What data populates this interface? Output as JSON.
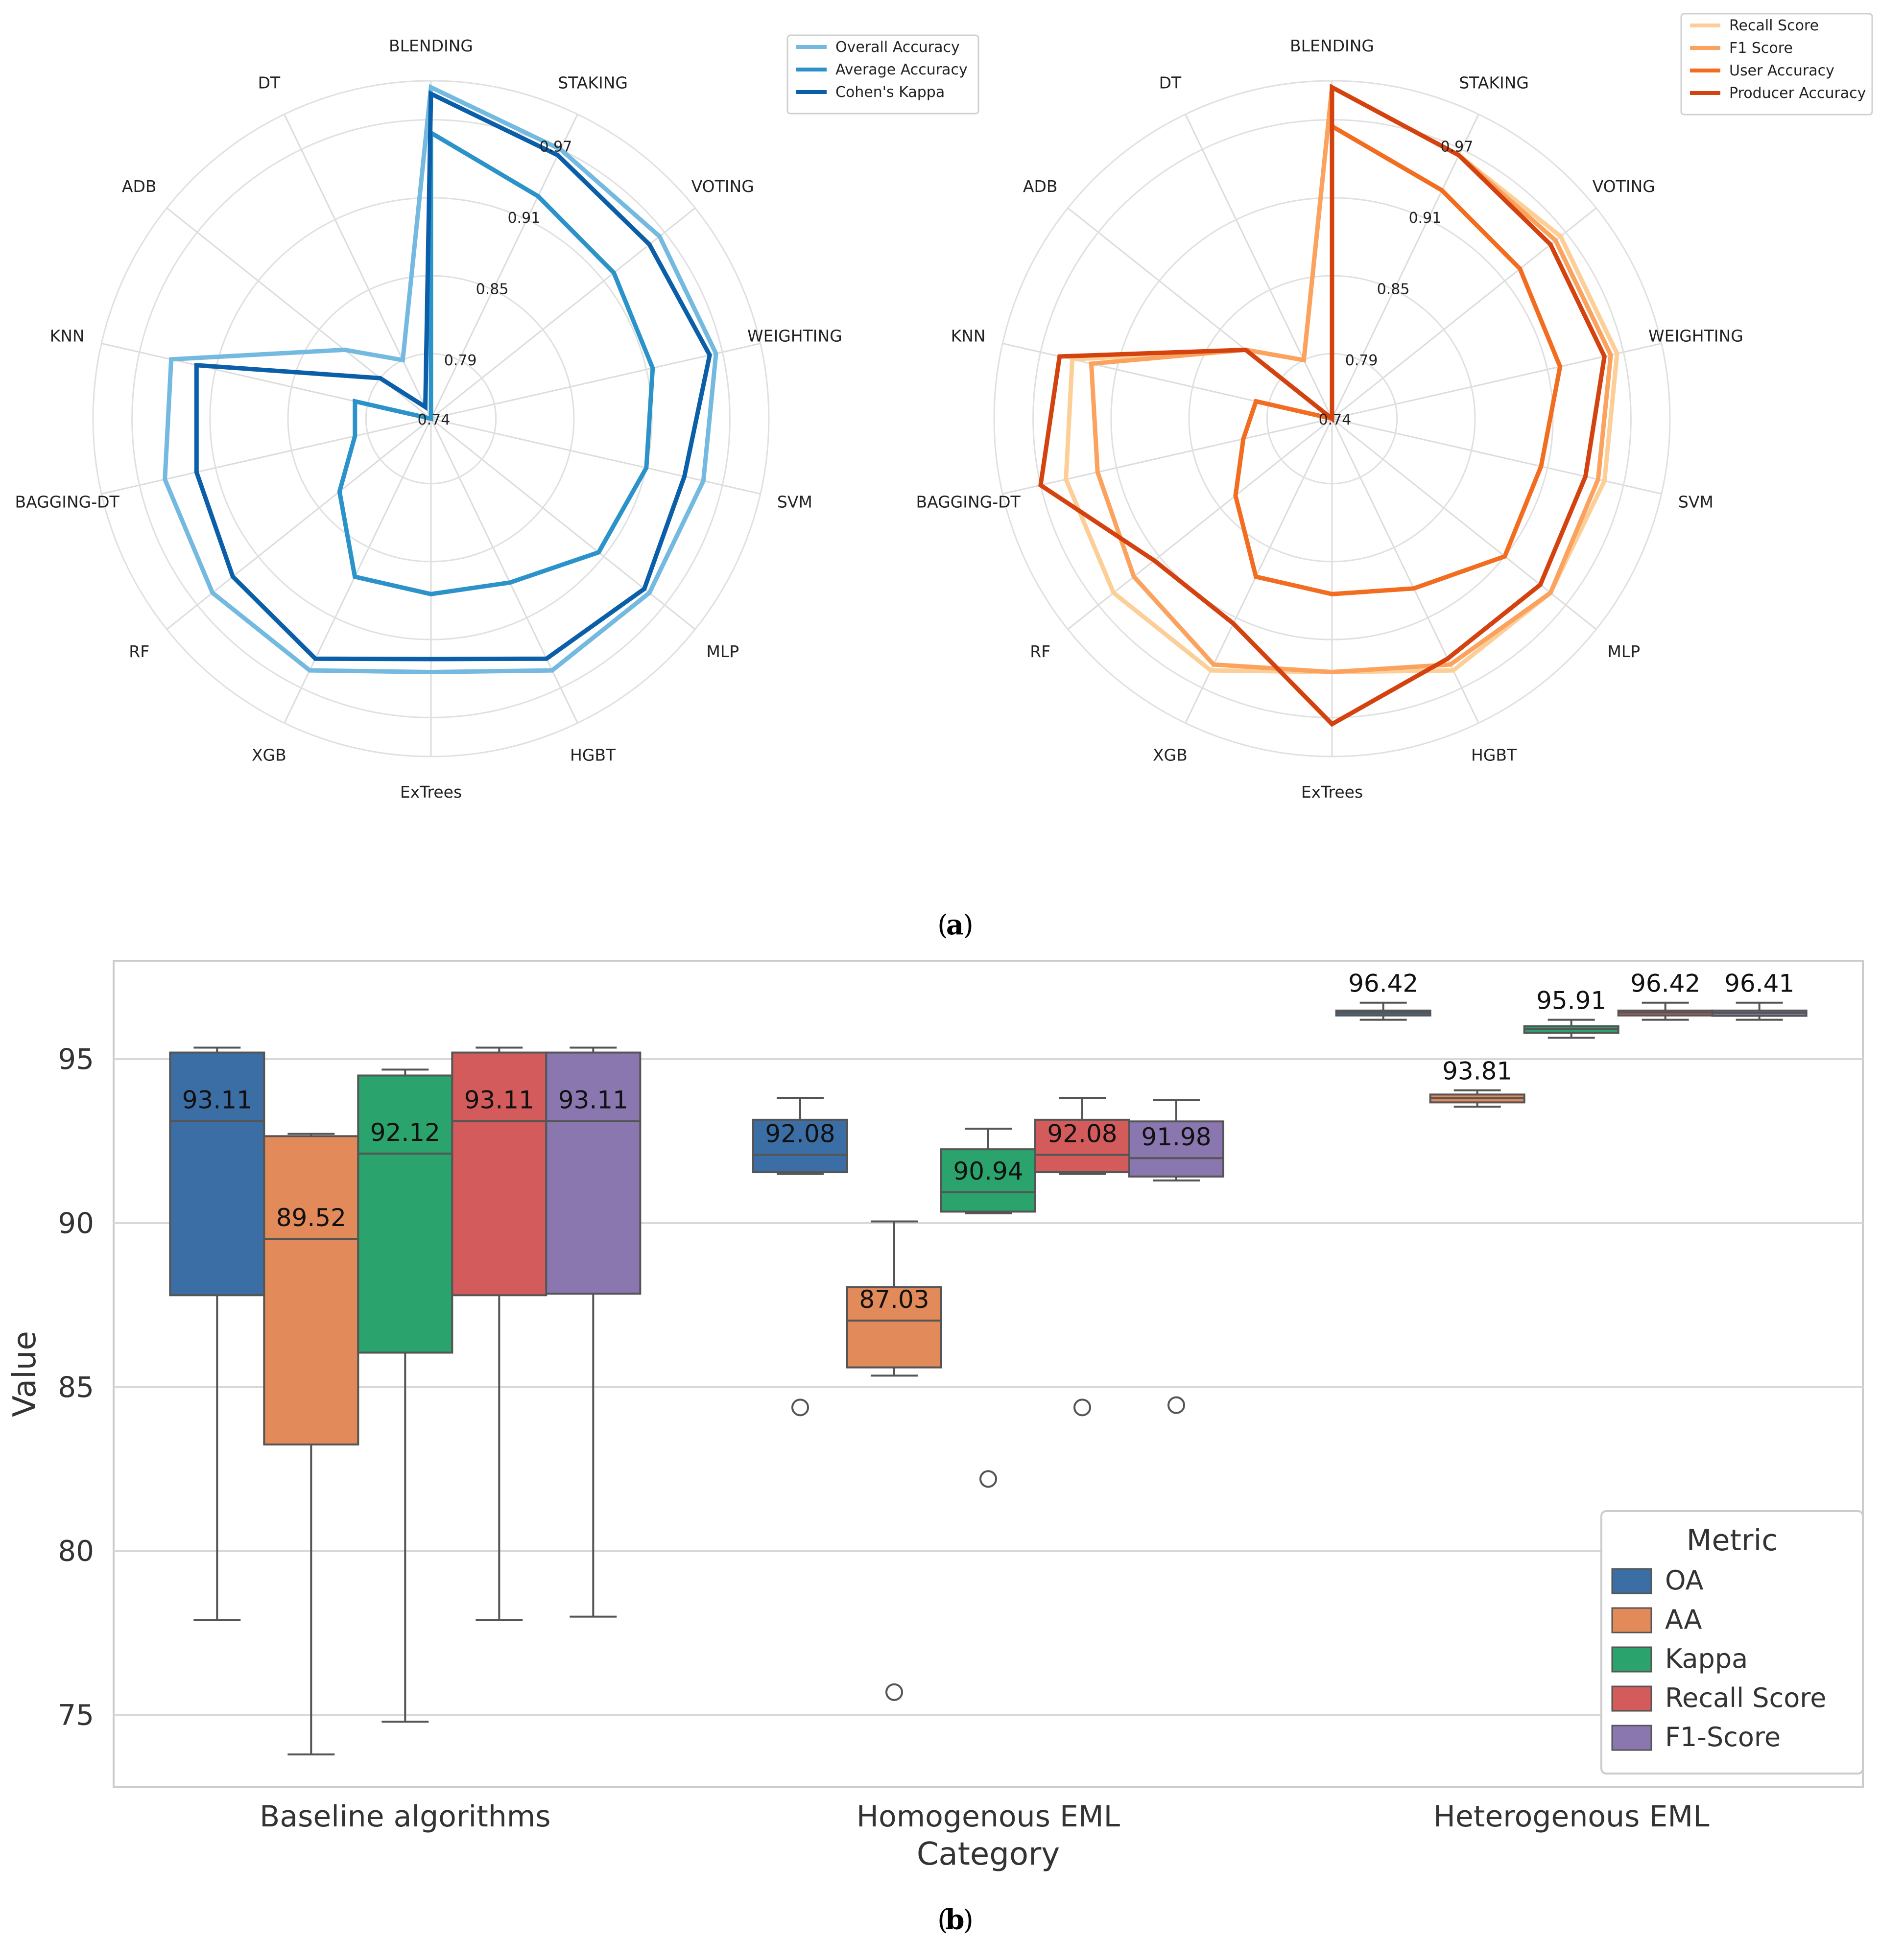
{
  "panel_labels": {
    "a": "a",
    "b": "b"
  },
  "chart_data": [
    {
      "type": "radar",
      "categories": [
        "BLENDING",
        "STAKING",
        "VOTING",
        "WEIGHTING",
        "SVM",
        "MLP",
        "HGBT",
        "ExTrees",
        "XGB",
        "RF",
        "BAGGING-DT",
        "KNN",
        "ADB",
        "DT"
      ],
      "radial_tick_labels": [
        "0.74",
        "0.79",
        "0.85",
        "0.91",
        "0.97"
      ],
      "radial_ticks": [
        0.74,
        0.79,
        0.85,
        0.91,
        0.97
      ],
      "rlim": [
        0.74,
        1.0
      ],
      "grid": true,
      "legend_position": "top-right",
      "series": [
        {
          "name": "Overall Accuracy",
          "color": "#74b9e0",
          "values": [
            0.995,
            0.97,
            0.965,
            0.965,
            0.955,
            0.955,
            0.955,
            0.935,
            0.955,
            0.955,
            0.95,
            0.945,
            0.825,
            0.79
          ]
        },
        {
          "name": "Average Accuracy",
          "color": "#2b93c9",
          "values": [
            0.96,
            0.93,
            0.92,
            0.915,
            0.91,
            0.905,
            0.88,
            0.875,
            0.875,
            0.83,
            0.8,
            0.8,
            0.74,
            0.74
          ]
        },
        {
          "name": "Cohen's Kappa",
          "color": "#0a5fa8",
          "values": [
            0.99,
            0.965,
            0.955,
            0.96,
            0.94,
            0.95,
            0.945,
            0.925,
            0.945,
            0.935,
            0.925,
            0.925,
            0.79,
            0.75
          ]
        }
      ]
    },
    {
      "type": "radar",
      "categories": [
        "BLENDING",
        "STAKING",
        "VOTING",
        "WEIGHTING",
        "SVM",
        "MLP",
        "HGBT",
        "ExTrees",
        "XGB",
        "RF",
        "BAGGING-DT",
        "KNN",
        "ADB",
        "DT"
      ],
      "radial_tick_labels": [
        "0.74",
        "0.79",
        "0.85",
        "0.91",
        "0.97"
      ],
      "radial_ticks": [
        0.74,
        0.79,
        0.85,
        0.91,
        0.97
      ],
      "rlim": [
        0.74,
        1.0
      ],
      "grid": true,
      "legend_position": "top-right",
      "series": [
        {
          "name": "Recall Score",
          "color": "#fdcf98",
          "values": [
            0.995,
            0.965,
            0.965,
            0.965,
            0.955,
            0.955,
            0.955,
            0.935,
            0.955,
            0.955,
            0.95,
            0.945,
            0.825,
            0.79
          ]
        },
        {
          "name": "F1 Score",
          "color": "#fba25e",
          "values": [
            0.995,
            0.965,
            0.96,
            0.96,
            0.95,
            0.955,
            0.95,
            0.935,
            0.95,
            0.935,
            0.925,
            0.93,
            0.825,
            0.79
          ]
        },
        {
          "name": "User Accuracy",
          "color": "#f26d1f",
          "values": [
            0.965,
            0.935,
            0.925,
            0.92,
            0.905,
            0.91,
            0.885,
            0.875,
            0.875,
            0.835,
            0.81,
            0.8,
            0.74,
            0.74
          ]
        },
        {
          "name": "Producer Accuracy",
          "color": "#d4430f",
          "values": [
            0.995,
            0.965,
            0.955,
            0.955,
            0.94,
            0.945,
            0.945,
            0.975,
            0.915,
            0.915,
            0.97,
            0.955,
            0.825,
            0.74
          ]
        }
      ]
    },
    {
      "type": "box",
      "categories": [
        "Baseline algorithms",
        "Homogenous EML",
        "Heterogenous EML"
      ],
      "xlabel": "Category",
      "ylabel": "Value",
      "ylim": [
        72.8,
        98.0
      ],
      "yticks": [
        75,
        80,
        85,
        90,
        95
      ],
      "grid": true,
      "legend_title": "Metric",
      "legend_position": "bottom-right",
      "series": [
        {
          "name": "OA",
          "color": "#3a6ea5",
          "boxes": [
            {
              "q1": 87.8,
              "median": 93.11,
              "q3": 95.2,
              "whisker_low": 77.9,
              "whisker_high": 95.35,
              "outliers": [],
              "label": "93.11"
            },
            {
              "q1": 91.55,
              "median": 92.08,
              "q3": 93.15,
              "whisker_low": 91.5,
              "whisker_high": 93.82,
              "outliers": [
                84.38
              ],
              "label": "92.08"
            },
            {
              "q1": 96.33,
              "median": 96.42,
              "q3": 96.48,
              "whisker_low": 96.2,
              "whisker_high": 96.72,
              "outliers": [],
              "label": "96.42"
            }
          ]
        },
        {
          "name": "AA",
          "color": "#e28a59",
          "boxes": [
            {
              "q1": 83.25,
              "median": 89.52,
              "q3": 92.65,
              "whisker_low": 73.8,
              "whisker_high": 92.72,
              "outliers": [],
              "label": "89.52"
            },
            {
              "q1": 85.6,
              "median": 87.03,
              "q3": 88.05,
              "whisker_low": 85.35,
              "whisker_high": 90.05,
              "outliers": [
                75.7
              ],
              "label": "87.03"
            },
            {
              "q1": 93.68,
              "median": 93.81,
              "q3": 93.92,
              "whisker_low": 93.55,
              "whisker_high": 94.05,
              "outliers": [],
              "label": "93.81"
            }
          ]
        },
        {
          "name": "Kappa",
          "color": "#2aa36c",
          "boxes": [
            {
              "q1": 86.05,
              "median": 92.12,
              "q3": 94.5,
              "whisker_low": 74.8,
              "whisker_high": 94.68,
              "outliers": [],
              "label": "92.12"
            },
            {
              "q1": 90.35,
              "median": 90.94,
              "q3": 92.25,
              "whisker_low": 90.3,
              "whisker_high": 92.88,
              "outliers": [
                82.2
              ],
              "label": "90.94"
            },
            {
              "q1": 95.8,
              "median": 95.91,
              "q3": 96.0,
              "whisker_low": 95.65,
              "whisker_high": 96.2,
              "outliers": [],
              "label": "95.91"
            }
          ]
        },
        {
          "name": "Recall Score",
          "color": "#d35b5b",
          "boxes": [
            {
              "q1": 87.8,
              "median": 93.11,
              "q3": 95.2,
              "whisker_low": 77.9,
              "whisker_high": 95.35,
              "outliers": [],
              "label": "93.11"
            },
            {
              "q1": 91.55,
              "median": 92.08,
              "q3": 93.15,
              "whisker_low": 91.5,
              "whisker_high": 93.82,
              "outliers": [
                84.38
              ],
              "label": "92.08"
            },
            {
              "q1": 96.33,
              "median": 96.42,
              "q3": 96.48,
              "whisker_low": 96.2,
              "whisker_high": 96.72,
              "outliers": [],
              "label": "96.42"
            }
          ]
        },
        {
          "name": "F1-Score",
          "color": "#8a77b0",
          "boxes": [
            {
              "q1": 87.85,
              "median": 93.11,
              "q3": 95.2,
              "whisker_low": 78.0,
              "whisker_high": 95.35,
              "outliers": [],
              "label": "93.11"
            },
            {
              "q1": 91.42,
              "median": 91.98,
              "q3": 93.1,
              "whisker_low": 91.3,
              "whisker_high": 93.75,
              "outliers": [
                84.45
              ],
              "label": "91.98"
            },
            {
              "q1": 96.32,
              "median": 96.41,
              "q3": 96.48,
              "whisker_low": 96.2,
              "whisker_high": 96.72,
              "outliers": [],
              "label": "96.41"
            }
          ]
        }
      ]
    }
  ]
}
